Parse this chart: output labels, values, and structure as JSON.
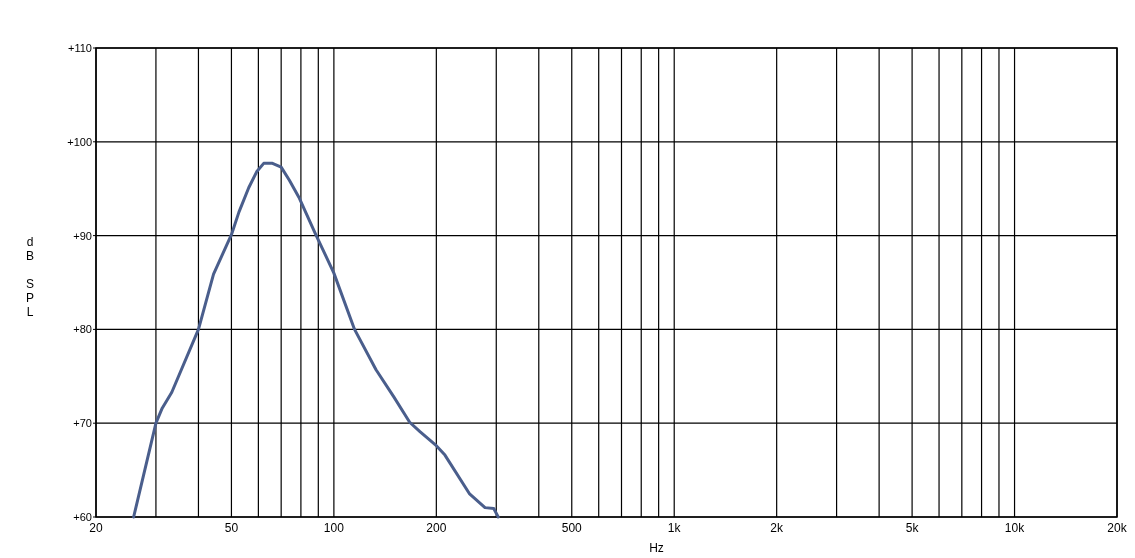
{
  "chart_data": {
    "type": "line",
    "xlabel": "Hz",
    "ylabel": "dB SPL",
    "log": "x",
    "grid": true,
    "marker": "none",
    "line_style": "solid",
    "xlim": [
      20,
      20000
    ],
    "ylim": [
      60,
      110
    ],
    "xticks": [
      20,
      {
        "value": 30,
        "label": null
      },
      {
        "value": 40,
        "label": null
      },
      50,
      {
        "value": 60,
        "label": null
      },
      {
        "value": 70,
        "label": null
      },
      {
        "value": 80,
        "label": null
      },
      {
        "value": 90,
        "label": null
      },
      100,
      200,
      {
        "value": 300,
        "label": null
      },
      {
        "value": 400,
        "label": null
      },
      500,
      {
        "value": 600,
        "label": null
      },
      {
        "value": 700,
        "label": null
      },
      {
        "value": 800,
        "label": null
      },
      {
        "value": 900,
        "label": null
      },
      {
        "value": 1000,
        "label": "1k"
      },
      {
        "value": 2000,
        "label": "2k"
      },
      {
        "value": 3000,
        "label": null
      },
      {
        "value": 4000,
        "label": null
      },
      {
        "value": 5000,
        "label": "5k"
      },
      {
        "value": 6000,
        "label": null
      },
      {
        "value": 7000,
        "label": null
      },
      {
        "value": 8000,
        "label": null
      },
      {
        "value": 9000,
        "label": null
      },
      {
        "value": 10000,
        "label": "10k"
      },
      {
        "value": 20000,
        "label": "20k"
      }
    ],
    "yticks": [
      {
        "value": 60,
        "label": "+60"
      },
      {
        "value": 70,
        "label": "+70"
      },
      {
        "value": 80,
        "label": "+80"
      },
      {
        "value": 90,
        "label": "+90"
      },
      {
        "value": 100,
        "label": "+100"
      },
      {
        "value": 110,
        "label": "+110"
      }
    ],
    "series": [
      {
        "color": "#4a5e8c",
        "x": [
          25.8,
          30,
          31.3,
          33.4,
          40,
          44.3,
          50,
          52.6,
          56.2,
          59.3,
          62.2,
          66,
          70,
          74,
          78.9,
          88,
          100,
          115,
          133,
          150,
          167,
          179,
          200,
          212,
          250,
          278,
          295,
          304
        ],
        "values": [
          60,
          70,
          71.6,
          73.3,
          80,
          85.9,
          90.1,
          92.5,
          95.1,
          96.8,
          97.7,
          97.7,
          97.3,
          95.9,
          94.1,
          90.3,
          86,
          80,
          75.7,
          72.8,
          70.1,
          69.1,
          67.6,
          66.6,
          62.5,
          61,
          60.9,
          60
        ]
      }
    ]
  }
}
